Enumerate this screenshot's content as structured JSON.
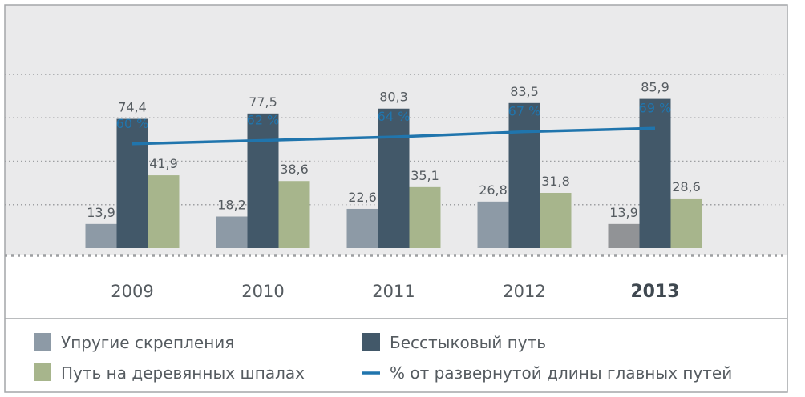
{
  "chart_data": {
    "type": "bar",
    "categories": [
      "2009",
      "2010",
      "2011",
      "2012",
      "2013"
    ],
    "highlight_category": "2013",
    "series": [
      {
        "name": "Упругие скрепления",
        "values": [
          13.9,
          18.2,
          22.6,
          26.8,
          13.9
        ],
        "labels": [
          "13,9",
          "18,2",
          "22,6",
          "26,8",
          "13,9"
        ],
        "color": "#8d9aa6",
        "highlight_color": "#919396"
      },
      {
        "name": "Бесстыковый путь",
        "values": [
          74.4,
          77.5,
          80.3,
          83.5,
          85.9
        ],
        "labels": [
          "74,4",
          "77,5",
          "80,3",
          "83,5",
          "85,9"
        ],
        "color": "#425869"
      },
      {
        "name": "Путь на деревянных шпалах",
        "values": [
          41.9,
          38.6,
          35.1,
          31.8,
          28.6
        ],
        "labels": [
          "41,9",
          "38,6",
          "35,1",
          "31,8",
          "28,6"
        ],
        "color": "#a7b58c"
      }
    ],
    "line_series": {
      "name": "% от развернутой длины главных путей",
      "values": [
        60,
        62,
        64,
        67,
        69
      ],
      "labels": [
        "60 %",
        "62 %",
        "64 %",
        "67 %",
        "69 %"
      ],
      "color": "#2075ad"
    },
    "ylim": [
      0,
      100
    ],
    "grid": true,
    "legend_position": "bottom",
    "colors": {
      "panel_background": "#eaeaeb",
      "gridline": "#9d9fa2",
      "label_text": "#555b60",
      "line_labels": "#2075ad"
    }
  }
}
